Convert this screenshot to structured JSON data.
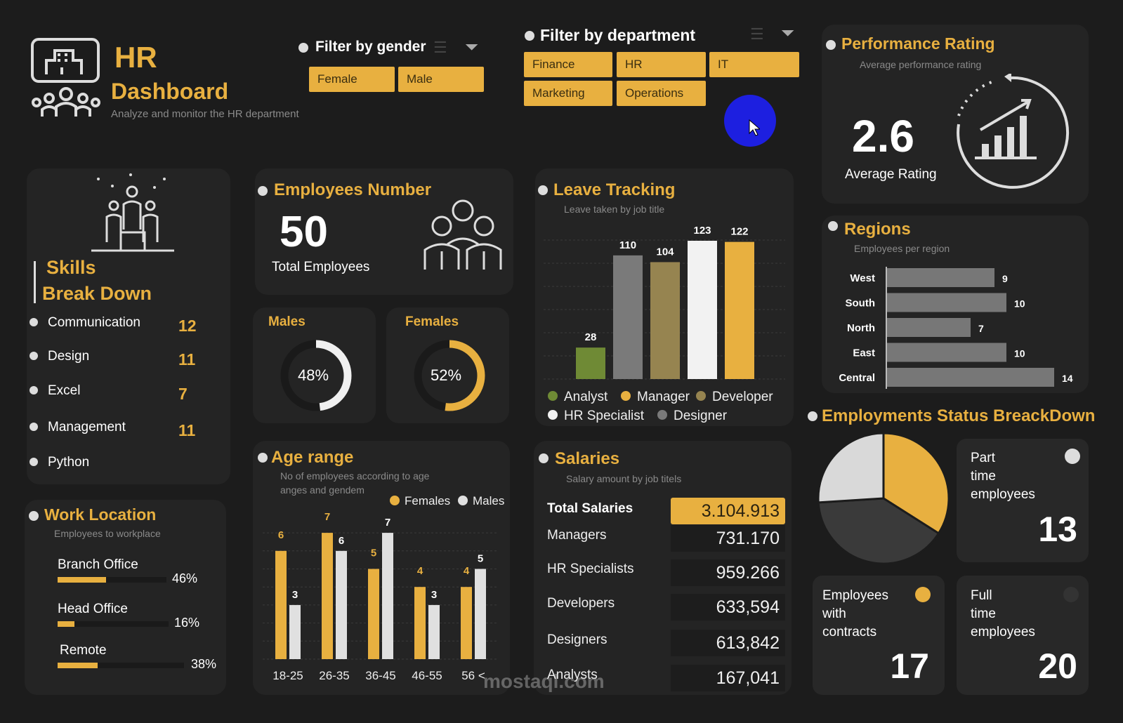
{
  "header": {
    "title_line1": "HR",
    "title_line2": "Dashboard",
    "subtitle": "Analyze and monitor the HR department"
  },
  "gender_filter": {
    "title": "Filter by gender",
    "options": [
      "Female",
      "Male"
    ]
  },
  "department_filter": {
    "title": "Filter by department",
    "options": [
      "Finance",
      "HR",
      "IT",
      "Marketing",
      "Operations"
    ]
  },
  "performance": {
    "title": "Performance Rating",
    "subtitle": "Average performance rating",
    "value": "2.6",
    "label": "Average Rating"
  },
  "skills": {
    "title_line1": "Skills",
    "title_line2": "Break Down",
    "items": [
      {
        "label": "Communication",
        "value": "12"
      },
      {
        "label": "Design",
        "value": "11"
      },
      {
        "label": "Excel",
        "value": "7"
      },
      {
        "label": "Management",
        "value": "11"
      },
      {
        "label": "Python",
        "value": ""
      }
    ]
  },
  "employees": {
    "title": "Employees Number",
    "value": "50",
    "label": "Total Employees"
  },
  "gender_split": {
    "males": {
      "label": "Males",
      "percent": 48,
      "text": "48%"
    },
    "females": {
      "label": "Females",
      "percent": 52,
      "text": "52%"
    }
  },
  "work_location": {
    "title": "Work Location",
    "subtitle": "Employees to workplace",
    "items": [
      {
        "label": "Branch Office",
        "percent": 46,
        "text": "46%"
      },
      {
        "label": "Head Office",
        "percent": 16,
        "text": "16%"
      },
      {
        "label": "Remote",
        "percent": 38,
        "text": "38%"
      }
    ]
  },
  "colors": {
    "accent": "#e8b040",
    "background": "#1c1c1c",
    "panel": "#242424",
    "analyst": "#6f8a35",
    "designer": "#7a7a7a",
    "developer": "#968450",
    "hr_specialist": "#f2f2f2",
    "manager": "#e8b040",
    "cursor": "#1d1fe0"
  },
  "chart_data": [
    {
      "type": "bar",
      "title": "Leave Tracking",
      "subtitle": "Leave taken by job title",
      "categories": [
        "Analyst",
        "Designer",
        "Developer",
        "HR Specialist",
        "Manager"
      ],
      "values": [
        28,
        110,
        104,
        123,
        122
      ],
      "legend": [
        "Analyst",
        "Manager",
        "Developer",
        "HR Specialist",
        "Designer"
      ],
      "legend_placement": "bottom",
      "grid": true
    },
    {
      "type": "bar",
      "title": "Age range",
      "subtitle_line1": "No of employees according to age",
      "subtitle_line2": "anges and gendem",
      "categories": [
        "18-25",
        "26-35",
        "36-45",
        "46-55",
        "56 <"
      ],
      "series": [
        {
          "name": "Females",
          "values": [
            6,
            7,
            5,
            4,
            4
          ]
        },
        {
          "name": "Males",
          "values": [
            3,
            6,
            7,
            3,
            5
          ]
        }
      ],
      "legend_placement": "top-right",
      "grid": true
    },
    {
      "type": "bar",
      "orientation": "horizontal",
      "title": "Regions",
      "subtitle": "Employees per region",
      "categories": [
        "West",
        "South",
        "North",
        "East",
        "Central"
      ],
      "values": [
        9,
        10,
        7,
        10,
        14
      ]
    },
    {
      "type": "pie",
      "title": "Employments Status BreackDown",
      "slices": [
        {
          "label": "Employees with contracts",
          "value": 17
        },
        {
          "label": "Full time employees",
          "value": 20
        },
        {
          "label": "Part time employees",
          "value": 13
        }
      ]
    }
  ],
  "salaries": {
    "title": "Salaries",
    "subtitle": "Salary amount by job titels",
    "total_label": "Total Salaries",
    "total": "3.104.913",
    "rows": [
      {
        "label": "Managers",
        "value": "731.170"
      },
      {
        "label": "HR Specialists",
        "value": "959.266"
      },
      {
        "label": "Developers",
        "value": "633,594"
      },
      {
        "label": "Designers",
        "value": "613,842"
      },
      {
        "label": "Analysts",
        "value": "167,041"
      }
    ]
  },
  "status_cards": [
    {
      "label_lines": [
        "Part",
        "time",
        "employees"
      ],
      "value": "13"
    },
    {
      "label_lines": [
        "Employees",
        "with",
        "contracts"
      ],
      "value": "17"
    },
    {
      "label_lines": [
        "Full",
        "time",
        "employees"
      ],
      "value": "20"
    }
  ],
  "watermark": "mostaql.com"
}
